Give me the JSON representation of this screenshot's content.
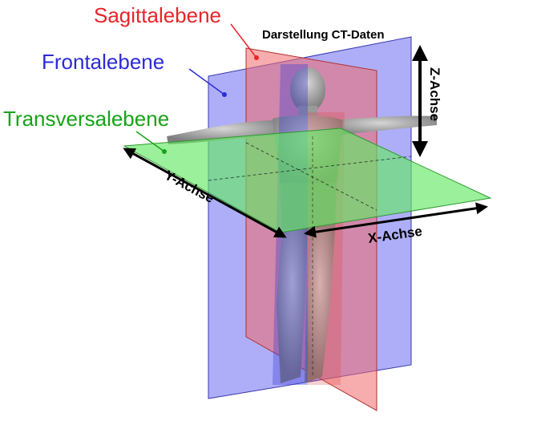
{
  "labels": {
    "sagittal": "Sagittalebene",
    "frontal": "Frontalebene",
    "transversal": "Transversalebene",
    "title": "Darstellung CT-Daten",
    "z_axis": "Z-Achse",
    "y_axis": "Y-Achse",
    "x_axis": "X-Achse"
  },
  "colors": {
    "sagittal": "#e8252a",
    "frontal": "#2b2bd8",
    "transversal": "#17a317",
    "sagittal_plane": "#f06a6a",
    "frontal_plane": "#6c6cf2",
    "transversal_plane": "#66e866",
    "body": "#9a9a9a"
  }
}
